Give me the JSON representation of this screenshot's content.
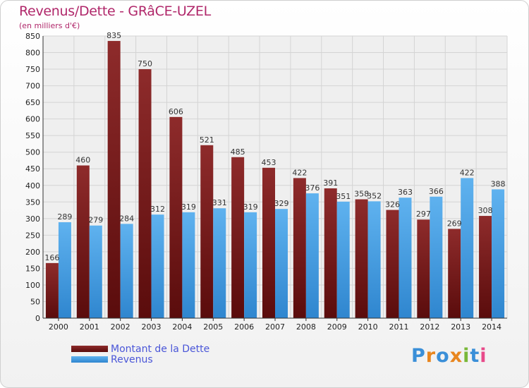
{
  "chart_data": {
    "type": "bar",
    "title": "Revenus/Dette - GRâCE-UZEL",
    "subtitle": "(en milliers d'€)",
    "categories": [
      "2000",
      "2001",
      "2002",
      "2003",
      "2004",
      "2005",
      "2006",
      "2007",
      "2008",
      "2009",
      "2010",
      "2011",
      "2012",
      "2013",
      "2014"
    ],
    "series": [
      {
        "name": "Montant de la Dette",
        "color": "#7a1a1a",
        "values": [
          166,
          460,
          835,
          750,
          606,
          521,
          485,
          453,
          422,
          391,
          358,
          326,
          297,
          269,
          308
        ]
      },
      {
        "name": "Revenus",
        "color": "#4aa3e6",
        "values": [
          289,
          279,
          284,
          312,
          319,
          331,
          319,
          329,
          376,
          351,
          352,
          363,
          366,
          422,
          388
        ]
      }
    ],
    "ylim": [
      0,
      850
    ],
    "ytick_step": 50,
    "grid": true,
    "legend": "bottom-left"
  },
  "logo": {
    "letters": [
      "P",
      "r",
      "o",
      "x",
      "i",
      "t",
      "i"
    ],
    "colors": [
      "#3a8fd8",
      "#e8861f",
      "#3a8fd8",
      "#e8861f",
      "#79b838",
      "#3a8fd8",
      "#e84a8a"
    ]
  }
}
